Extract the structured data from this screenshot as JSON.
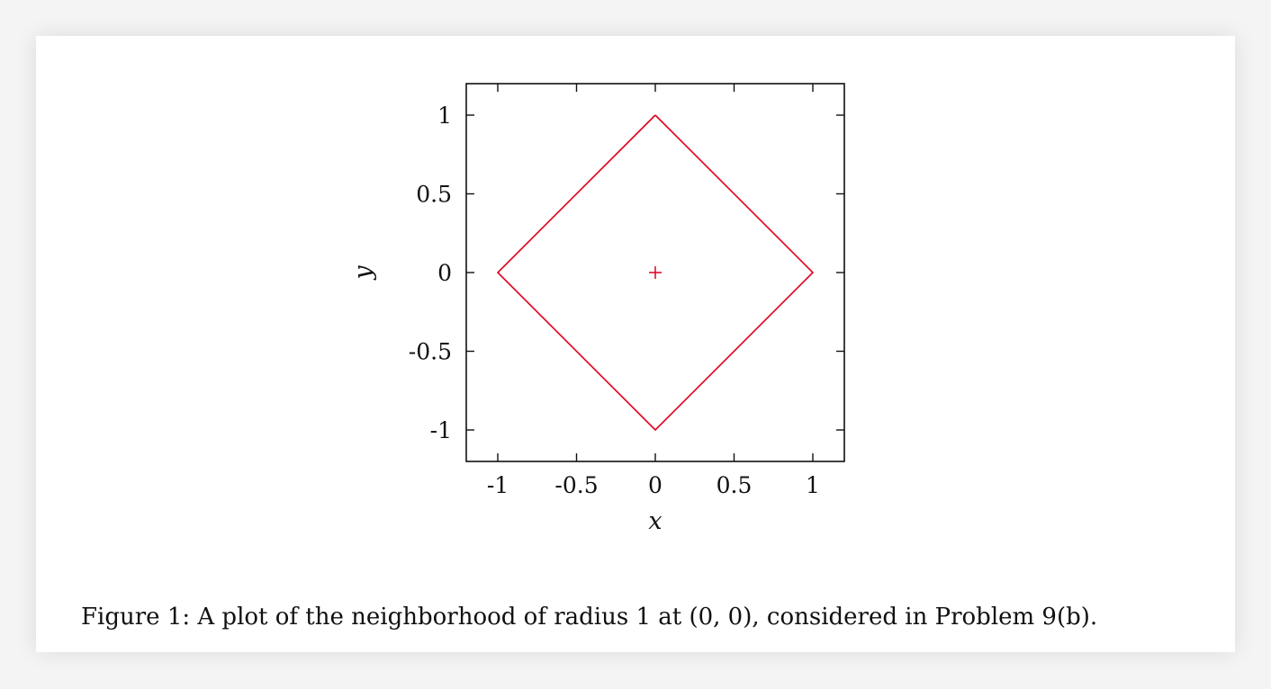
{
  "chart_data": {
    "type": "line",
    "xlabel": "x",
    "ylabel": "y",
    "xlim": [
      -1.2,
      1.2
    ],
    "ylim": [
      -1.2,
      1.2
    ],
    "xticks": [
      -1,
      -0.5,
      0,
      0.5,
      1
    ],
    "yticks": [
      -1,
      -0.5,
      0,
      0.5,
      1
    ],
    "xtick_labels": [
      "-1",
      "-0.5",
      "0",
      "0.5",
      "1"
    ],
    "ytick_labels": [
      "-1",
      "-0.5",
      "0",
      "0.5",
      "1"
    ],
    "grid": false,
    "series": [
      {
        "type": "line",
        "color": "#e0001b",
        "x": [
          0,
          1,
          0,
          -1,
          0
        ],
        "y": [
          1,
          0,
          -1,
          0,
          1
        ]
      },
      {
        "type": "scatter",
        "marker": "+",
        "color": "#e0001b",
        "x": [
          0
        ],
        "y": [
          0
        ]
      }
    ]
  },
  "caption": "Figure 1: A plot of the neighborhood of radius 1 at (0, 0), considered in Problem 9(b)."
}
